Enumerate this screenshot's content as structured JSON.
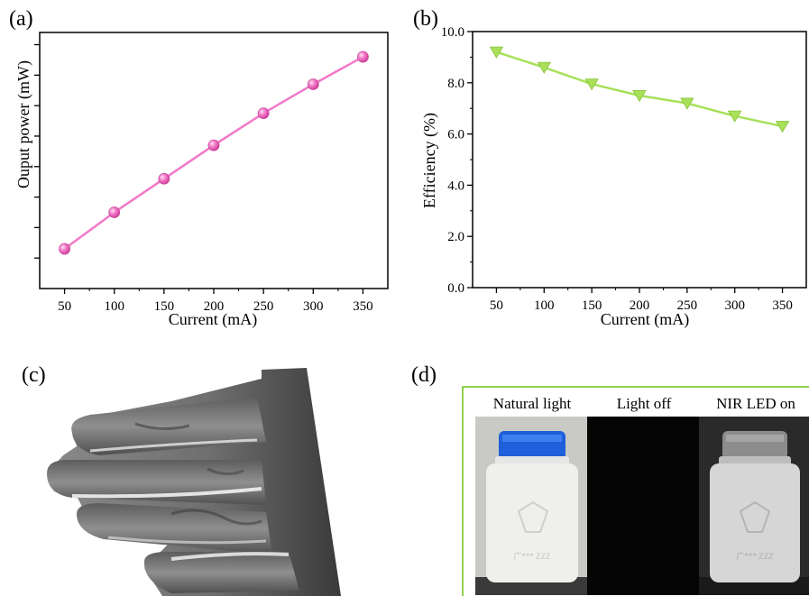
{
  "panels": {
    "a": "(a)",
    "b": "(b)",
    "c": "(c)",
    "d": "(d)"
  },
  "chart_data": [
    {
      "type": "line",
      "xlabel": "Current (mA)",
      "ylabel": "Ouput power (mW)",
      "x": [
        50,
        100,
        150,
        200,
        250,
        300,
        350
      ],
      "series": [
        {
          "values": [
            1.3,
            2.5,
            3.6,
            4.7,
            5.75,
            6.7,
            7.6
          ]
        }
      ],
      "ylim": [
        0,
        8.4
      ],
      "y_tick_labels": [],
      "grid": false,
      "marker": "circle",
      "color": "#f279c9"
    },
    {
      "type": "line",
      "xlabel": "Current (mA)",
      "ylabel": "Efficiency (%)",
      "x": [
        50,
        100,
        150,
        200,
        250,
        300,
        350
      ],
      "series": [
        {
          "values": [
            9.2,
            8.6,
            7.95,
            7.5,
            7.2,
            6.7,
            6.3
          ]
        }
      ],
      "ylim": [
        0,
        10
      ],
      "y_ticks": [
        0,
        2,
        4,
        6,
        8,
        10
      ],
      "y_tick_labels": [
        "0.0",
        "2.0",
        "4.0",
        "6.0",
        "8.0",
        "10.0"
      ],
      "grid": false,
      "marker": "triangle-down",
      "color": "#a8e05a"
    }
  ],
  "photos": {
    "captions": [
      "Natural light",
      "Light off",
      "NIR LED on"
    ],
    "bottle_label": "广***  ZZZ"
  }
}
